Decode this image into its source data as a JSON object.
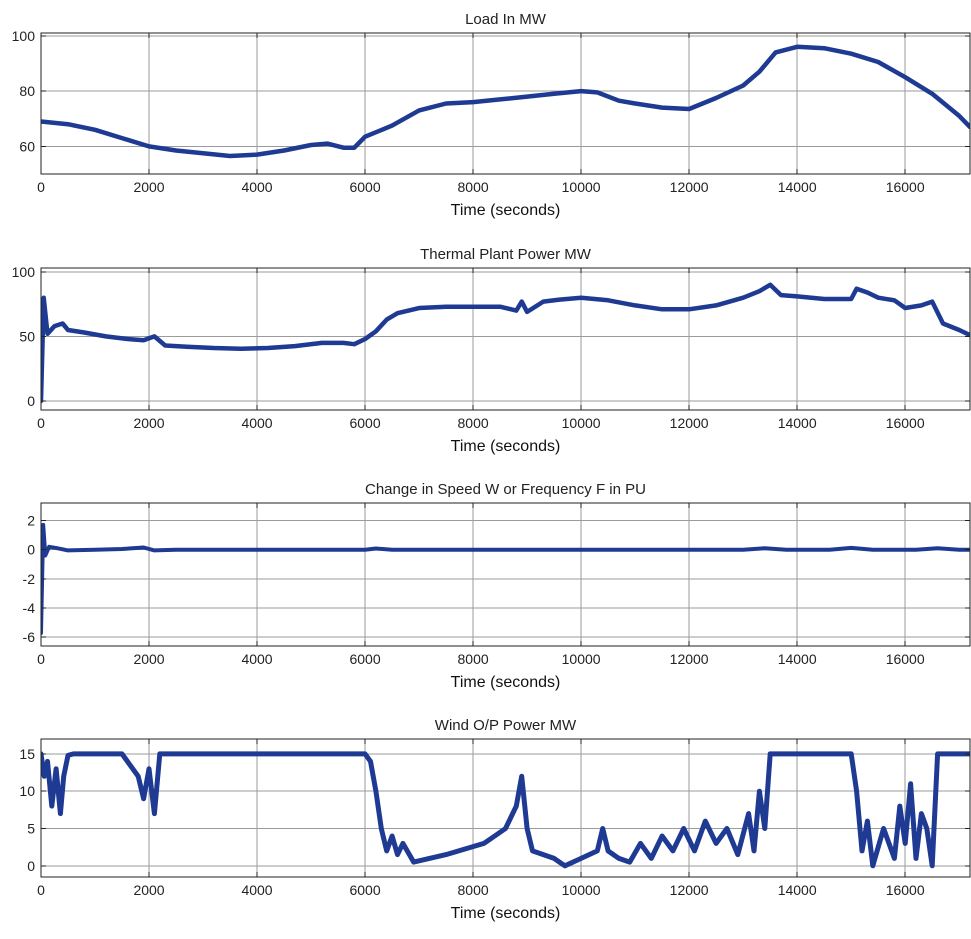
{
  "figure": {
    "colors": {
      "line": "#1f3a93",
      "grid": "#9b9b9b",
      "axis": "#222222",
      "background": "#ffffff"
    }
  },
  "chart_data": [
    {
      "type": "line",
      "title": "Load In MW",
      "xlabel": "Time (seconds)",
      "ylabel": "",
      "xlim": [
        0,
        17200
      ],
      "ylim": [
        50,
        101
      ],
      "xticks": [
        0,
        2000,
        4000,
        6000,
        8000,
        10000,
        12000,
        14000,
        16000
      ],
      "yticks": [
        60,
        80,
        100
      ],
      "grid": true,
      "series": [
        {
          "x": [
            0,
            500,
            1000,
            1500,
            2000,
            2500,
            3000,
            3500,
            4000,
            4500,
            5000,
            5300,
            5600,
            5800,
            6000,
            6500,
            7000,
            7500,
            8000,
            8500,
            9000,
            9500,
            10000,
            10300,
            10700,
            11000,
            11500,
            12000,
            12500,
            13000,
            13300,
            13600,
            14000,
            14500,
            15000,
            15500,
            16000,
            16500,
            17000,
            17200
          ],
          "y": [
            69,
            68,
            66,
            63,
            60,
            58.5,
            57.5,
            56.5,
            57,
            58.5,
            60.5,
            61,
            59.5,
            59.5,
            63.5,
            67.5,
            73,
            75.5,
            76,
            77,
            78,
            79,
            80,
            79.5,
            76.5,
            75.5,
            74,
            73.5,
            77.5,
            82,
            87,
            94,
            96,
            95.5,
            93.5,
            90.5,
            85,
            79,
            71,
            67
          ]
        }
      ]
    },
    {
      "type": "line",
      "title": "Thermal Plant Power MW",
      "xlabel": "Time (seconds)",
      "ylabel": "",
      "xlim": [
        0,
        17200
      ],
      "ylim": [
        -7,
        103
      ],
      "xticks": [
        0,
        2000,
        4000,
        6000,
        8000,
        10000,
        12000,
        14000,
        16000
      ],
      "yticks": [
        0,
        50,
        100
      ],
      "grid": true,
      "series": [
        {
          "x": [
            0,
            50,
            120,
            250,
            400,
            500,
            800,
            1200,
            1600,
            1900,
            2100,
            2300,
            2700,
            3200,
            3700,
            4200,
            4700,
            5200,
            5600,
            5800,
            6000,
            6200,
            6400,
            6600,
            7000,
            7500,
            8000,
            8500,
            8800,
            8900,
            9000,
            9300,
            9600,
            10000,
            10500,
            11000,
            11500,
            12000,
            12500,
            13000,
            13300,
            13500,
            13700,
            14000,
            14500,
            15000,
            15100,
            15300,
            15500,
            15800,
            16000,
            16300,
            16500,
            16700,
            17000,
            17200
          ],
          "y": [
            0,
            80,
            52,
            58,
            60,
            55,
            53,
            50,
            48,
            47,
            50,
            43,
            42,
            41,
            40.5,
            41,
            42.5,
            45,
            45,
            44,
            48,
            54,
            63,
            68,
            72,
            73,
            73,
            73,
            70,
            77,
            69,
            77,
            78.5,
            80,
            78,
            74,
            71,
            71,
            74,
            80,
            85,
            90,
            82,
            81,
            79,
            79,
            87,
            84,
            80,
            78,
            72,
            74,
            77,
            60,
            55,
            51
          ]
        }
      ]
    },
    {
      "type": "line",
      "title": "Change in Speed W or Frequency F in PU",
      "xlabel": "Time (seconds)",
      "ylabel": "",
      "xlim": [
        0,
        17200
      ],
      "ylim": [
        -6.6,
        3.2
      ],
      "xticks": [
        0,
        2000,
        4000,
        6000,
        8000,
        10000,
        12000,
        14000,
        16000
      ],
      "yticks": [
        -6,
        -4,
        -2,
        0,
        2
      ],
      "grid": true,
      "series": [
        {
          "x": [
            0,
            40,
            80,
            150,
            300,
            500,
            1000,
            1500,
            1900,
            2100,
            2500,
            3000,
            3500,
            4000,
            4500,
            5000,
            5500,
            6000,
            6200,
            6500,
            7000,
            7500,
            8000,
            8500,
            9000,
            9500,
            10000,
            10500,
            11000,
            11500,
            12000,
            12500,
            13000,
            13400,
            13800,
            14200,
            14600,
            15000,
            15400,
            15800,
            16200,
            16600,
            17000,
            17200
          ],
          "y": [
            -5.7,
            1.7,
            -0.4,
            0.2,
            0.1,
            -0.05,
            0,
            0.05,
            0.15,
            -0.05,
            0,
            0,
            0,
            0,
            0,
            0,
            0,
            0,
            0.08,
            0,
            0,
            0,
            0,
            0,
            0,
            0,
            0,
            0,
            0,
            0,
            0,
            0,
            0,
            0.1,
            0,
            0,
            0,
            0.12,
            0,
            0,
            0,
            0.1,
            0,
            0
          ]
        }
      ]
    },
    {
      "type": "line",
      "title": "Wind O/P Power MW",
      "xlabel": "Time (seconds)",
      "ylabel": "",
      "xlim": [
        0,
        17200
      ],
      "ylim": [
        -1.5,
        17
      ],
      "xticks": [
        0,
        2000,
        4000,
        6000,
        8000,
        10000,
        12000,
        14000,
        16000
      ],
      "yticks": [
        0,
        5,
        10,
        15
      ],
      "grid": true,
      "series": [
        {
          "x": [
            0,
            60,
            120,
            200,
            280,
            360,
            420,
            500,
            600,
            900,
            1200,
            1500,
            1800,
            1900,
            2000,
            2100,
            2200,
            2300,
            2600,
            3000,
            3500,
            4000,
            4500,
            5000,
            5500,
            6000,
            6100,
            6200,
            6300,
            6400,
            6500,
            6600,
            6700,
            6900,
            7500,
            8200,
            8400,
            8600,
            8800,
            8900,
            9000,
            9100,
            9300,
            9500,
            9700,
            10000,
            10300,
            10400,
            10500,
            10700,
            10900,
            11100,
            11300,
            11500,
            11700,
            11900,
            12100,
            12300,
            12500,
            12700,
            12900,
            13100,
            13200,
            13300,
            13400,
            13500,
            13800,
            14200,
            14600,
            15000,
            15100,
            15200,
            15300,
            15400,
            15600,
            15800,
            15900,
            16000,
            16100,
            16200,
            16300,
            16400,
            16500,
            16600,
            16700,
            17000,
            17200
          ],
          "y": [
            15,
            12,
            14,
            8,
            13,
            7,
            12,
            14.8,
            15,
            15,
            15,
            15,
            12,
            9,
            13,
            7,
            15,
            15,
            15,
            15,
            15,
            15,
            15,
            15,
            15,
            15,
            14,
            10,
            5,
            2,
            4,
            1.5,
            3,
            0.5,
            1.5,
            3,
            4,
            5,
            8,
            12,
            5,
            2,
            1.5,
            1,
            0,
            1,
            2,
            5,
            2,
            1,
            0.5,
            3,
            1,
            4,
            2,
            5,
            2,
            6,
            3,
            5,
            1.5,
            7,
            2,
            10,
            5,
            15,
            15,
            15,
            15,
            15,
            10,
            2,
            6,
            0,
            5,
            1,
            8,
            3,
            11,
            1,
            7,
            5,
            0,
            15,
            15,
            15,
            15
          ]
        }
      ]
    }
  ]
}
